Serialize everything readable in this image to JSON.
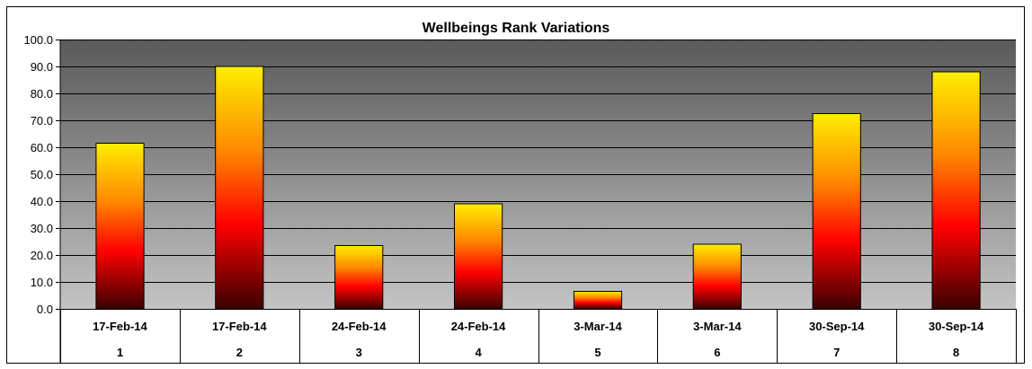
{
  "chart_data": {
    "type": "bar",
    "title": "Wellbeings Rank Variations",
    "categories": [
      {
        "date": "17-Feb-14",
        "index": "1"
      },
      {
        "date": "17-Feb-14",
        "index": "2"
      },
      {
        "date": "24-Feb-14",
        "index": "3"
      },
      {
        "date": "24-Feb-14",
        "index": "4"
      },
      {
        "date": "3-Mar-14",
        "index": "5"
      },
      {
        "date": "3-Mar-14",
        "index": "6"
      },
      {
        "date": "30-Sep-14",
        "index": "7"
      },
      {
        "date": "30-Sep-14",
        "index": "8"
      }
    ],
    "values": [
      61.5,
      90.0,
      23.5,
      39.0,
      6.5,
      24.0,
      72.5,
      88.0
    ],
    "ylim": [
      0,
      100
    ],
    "yticks": [
      "0.0",
      "10.0",
      "20.0",
      "30.0",
      "40.0",
      "50.0",
      "60.0",
      "70.0",
      "80.0",
      "90.0",
      "100.0"
    ],
    "grid": true,
    "legend": "none",
    "colors": {
      "plot_bg_top": "#5a5a5a",
      "plot_bg_bottom": "#c4c4c4",
      "bar_top": "#ffee00",
      "bar_mid": "#ff8800",
      "bar_red": "#ff0000",
      "bar_bottom": "#3a0000",
      "gridline": "#000000"
    }
  }
}
